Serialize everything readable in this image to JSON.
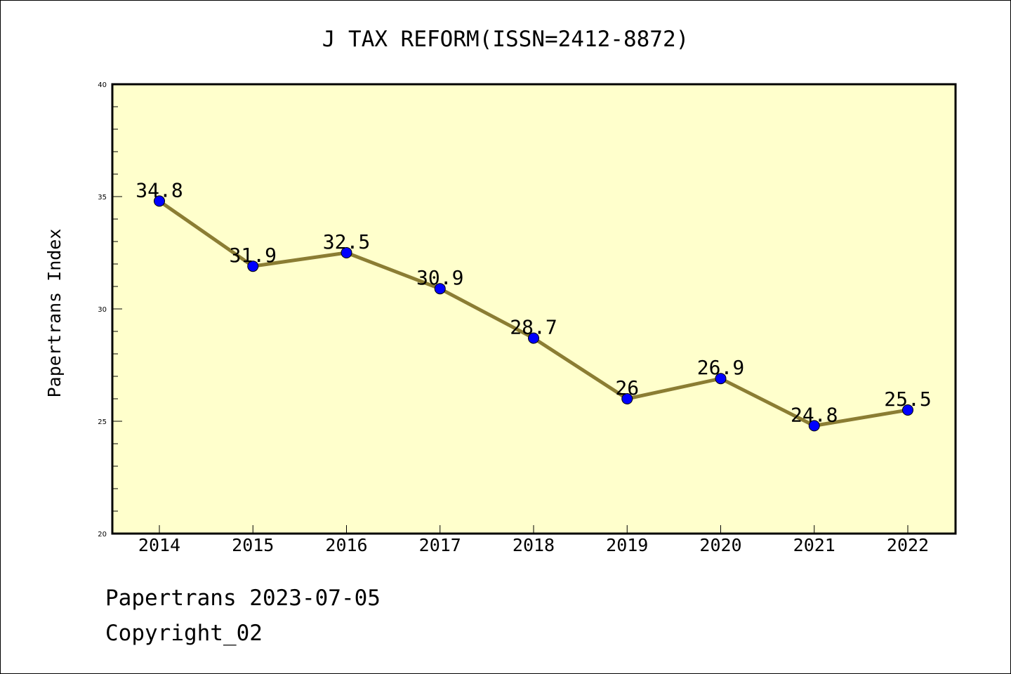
{
  "chart_data": {
    "type": "line",
    "title": "J TAX REFORM(ISSN=2412-8872)",
    "xlabel": "",
    "ylabel": "Papertrans Index",
    "categories": [
      "2014",
      "2015",
      "2016",
      "2017",
      "2018",
      "2019",
      "2020",
      "2021",
      "2022"
    ],
    "series": [
      {
        "name": "Papertrans Index",
        "values": [
          34.8,
          31.9,
          32.5,
          30.9,
          28.7,
          26,
          26.9,
          24.8,
          25.5
        ],
        "labels": [
          "34.8",
          "31.9",
          "32.5",
          "30.9",
          "28.7",
          "26",
          "26.9",
          "24.8",
          "25.5"
        ]
      }
    ],
    "ylim": [
      20,
      40
    ],
    "yticks": [
      20,
      25,
      30,
      35,
      40
    ],
    "ytick_labels": [
      "20",
      "25",
      "30",
      "35",
      "40"
    ],
    "grid": false,
    "colors": {
      "plot_background": "#ffffcc",
      "line": "#8b7d33",
      "marker": "#0000ff"
    }
  },
  "footer": {
    "date_line": "Papertrans 2023-07-05",
    "copyright_line": "Copyright_02"
  }
}
